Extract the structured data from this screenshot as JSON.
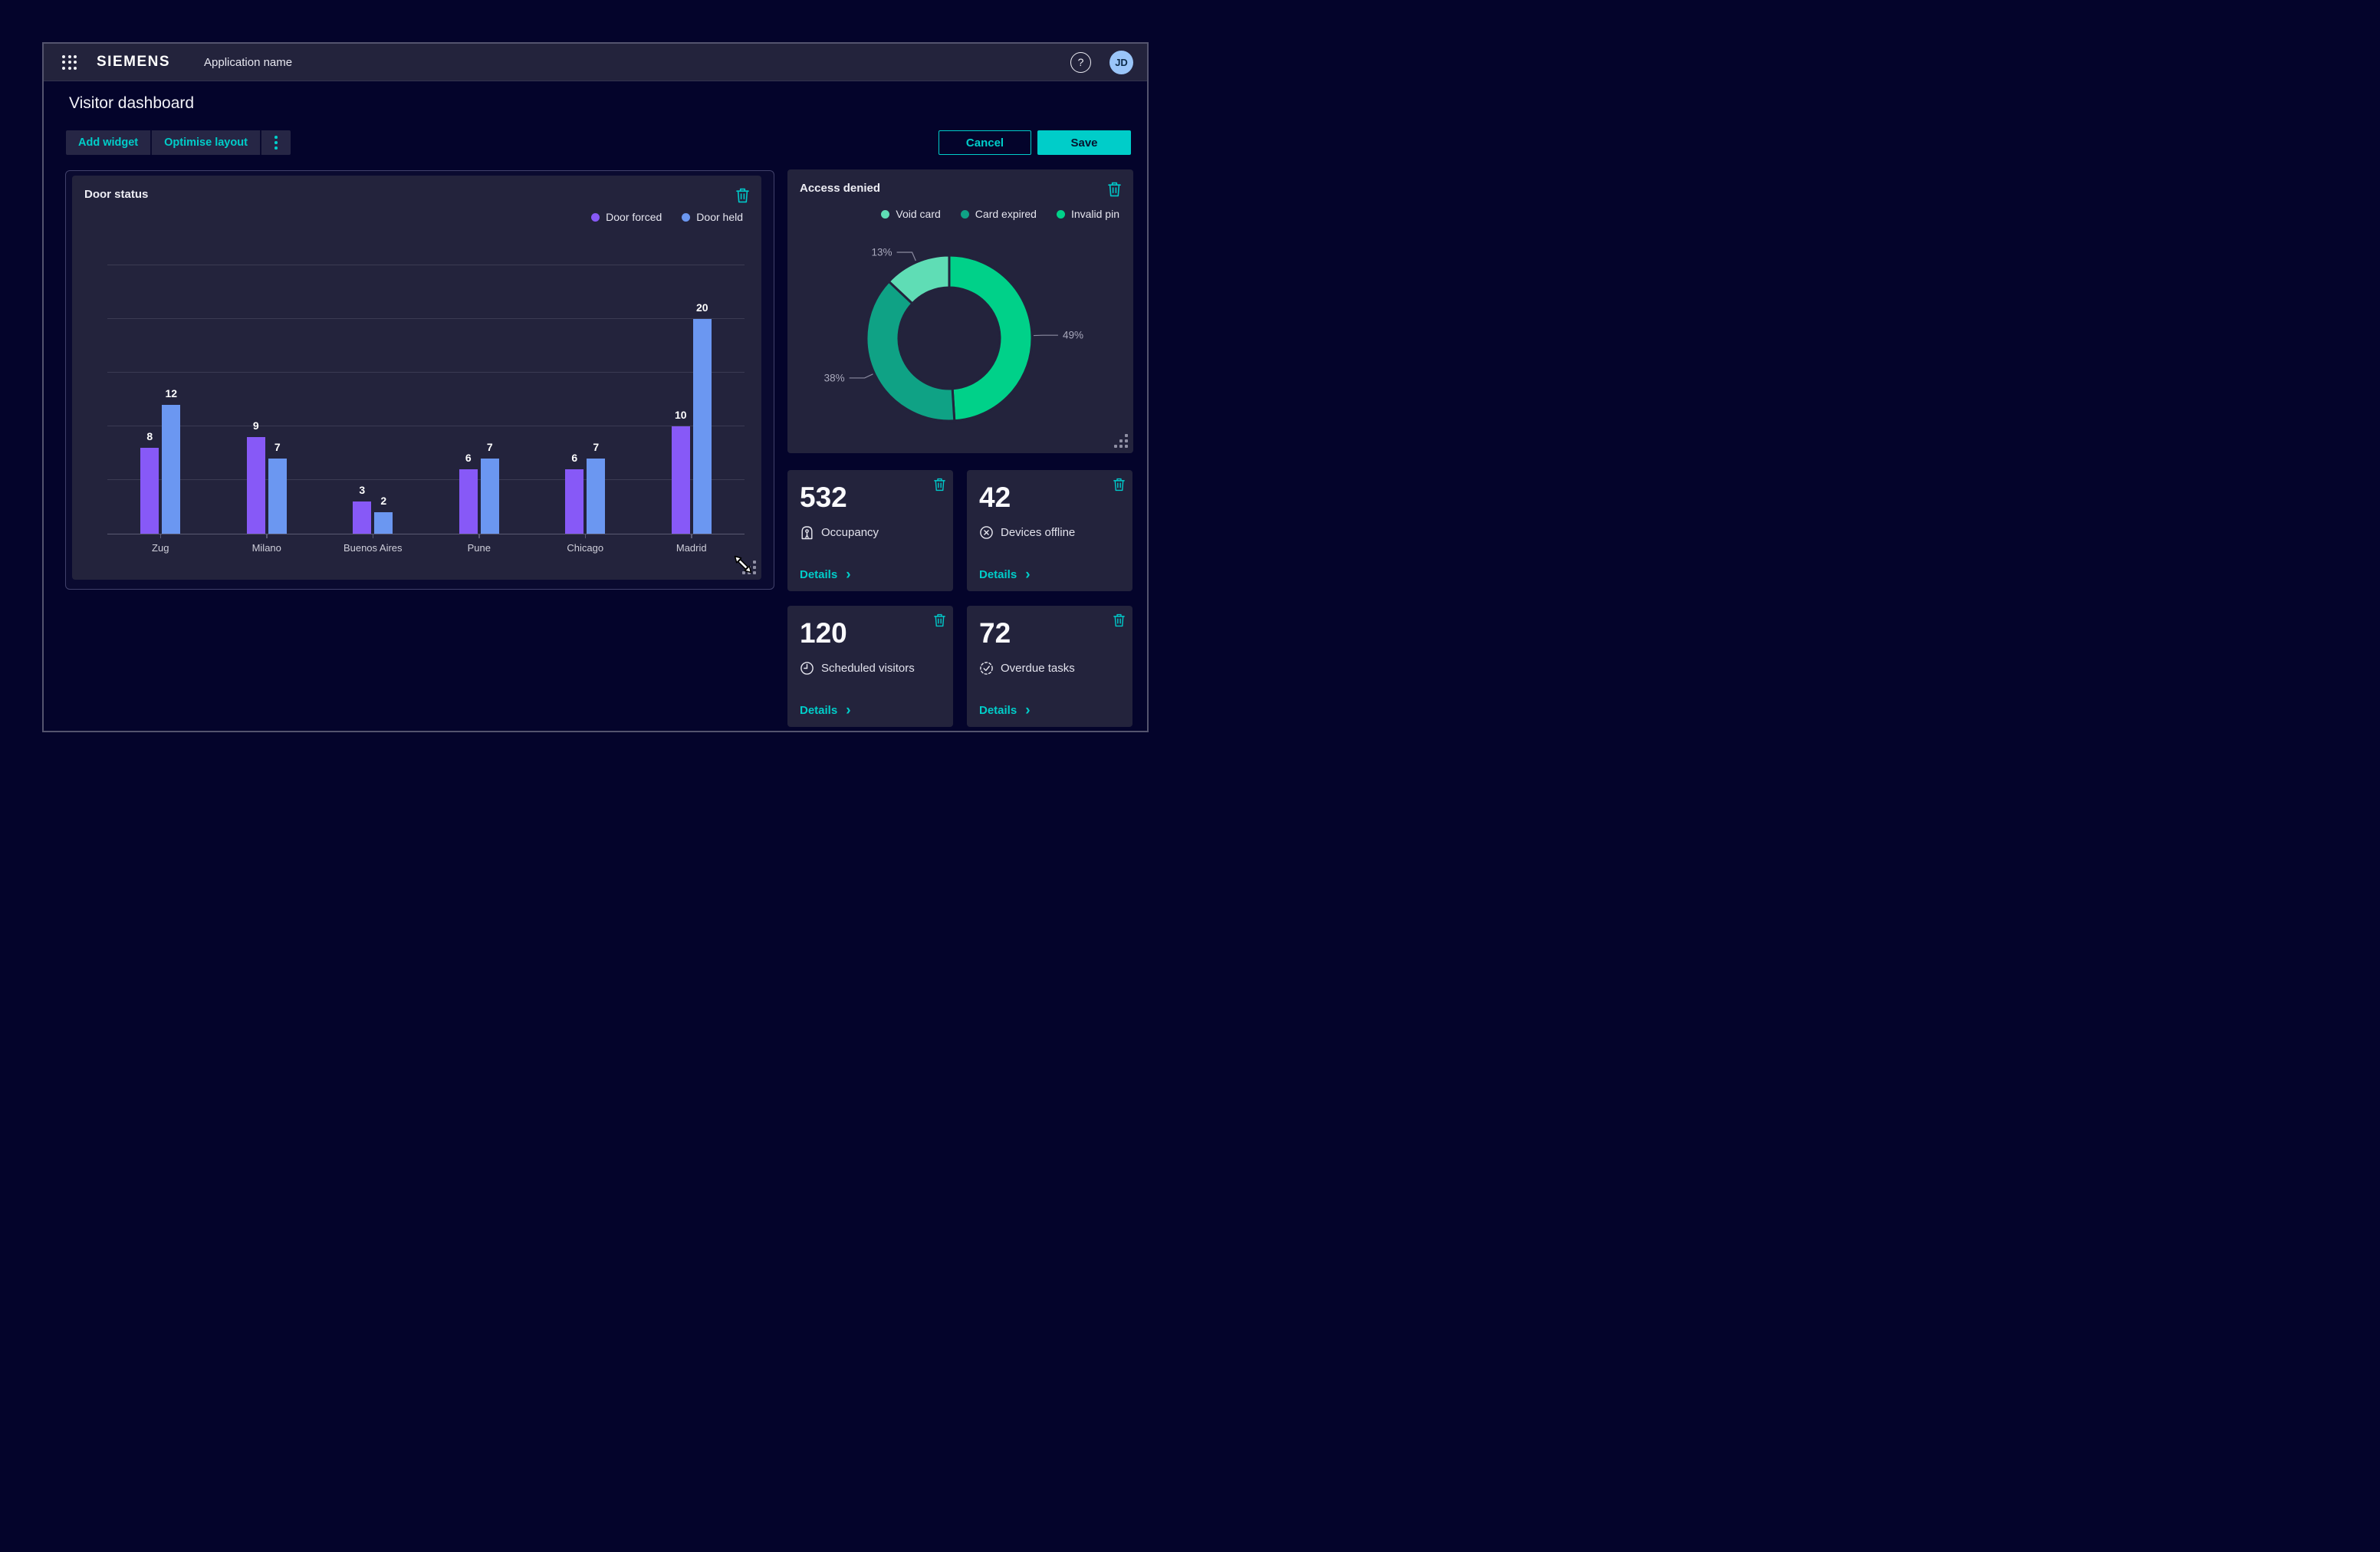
{
  "header": {
    "brand": "SIEMENS",
    "app_name": "Application name",
    "avatar_initials": "JD"
  },
  "page": {
    "title": "Visitor dashboard"
  },
  "toolbar": {
    "add_widget": "Add widget",
    "optimise_layout": "Optimise layout",
    "cancel": "Cancel",
    "save": "Save"
  },
  "icons": {
    "apps_grid": "3x3-dot-grid",
    "help_glyph": "?",
    "kebab": "vertical-ellipsis",
    "trash": "trash-outline",
    "chevron_right": "›",
    "resize_cursor": "diagonal-resize-arrow",
    "grip": "corner-dots"
  },
  "colors": {
    "accent": "#00CDC9",
    "card_bg": "#23233C",
    "page_bg": "#04042B",
    "bar_purple": "#8759F7",
    "bar_blue": "#6B97F1",
    "donut_bright_green": "#00D189",
    "donut_teal": "#0FA285",
    "donut_light_green": "#5FDDB5"
  },
  "chart_data": [
    {
      "type": "bar",
      "title": "Door status",
      "categories": [
        "Zug",
        "Milano",
        "Buenos Aires",
        "Pune",
        "Chicago",
        "Madrid"
      ],
      "series": [
        {
          "name": "Door forced",
          "color": "#8759F7",
          "values": [
            8,
            9,
            3,
            6,
            6,
            10
          ]
        },
        {
          "name": "Door held",
          "color": "#6B97F1",
          "values": [
            12,
            7,
            2,
            7,
            7,
            20
          ]
        }
      ],
      "xlabel": "",
      "ylabel": "",
      "ylim": [
        0,
        28
      ],
      "grid_step": 5,
      "grid": true,
      "legend_position": "top-right",
      "value_labels": true
    },
    {
      "type": "pie",
      "title": "Access denied",
      "legend": [
        {
          "label": "Void card",
          "color": "#5FDDB5"
        },
        {
          "label": "Card expired",
          "color": "#0FA285"
        },
        {
          "label": "Invalid pin",
          "color": "#00D189"
        }
      ],
      "slices_clockwise_from_top": [
        {
          "label": "Invalid pin",
          "pct": 49,
          "pct_label": "49%",
          "color": "#00D189"
        },
        {
          "label": "Card expired",
          "pct": 38,
          "pct_label": "38%",
          "color": "#0FA285"
        },
        {
          "label": "Void card",
          "pct": 13,
          "pct_label": "13%",
          "color": "#5FDDB5"
        }
      ],
      "donut": true,
      "legend_position": "top-right"
    }
  ],
  "kpi_cards": [
    {
      "value": "532",
      "label": "Occupancy",
      "icon": "occupancy-icon",
      "details_label": "Details"
    },
    {
      "value": "42",
      "label": "Devices offline",
      "icon": "devices-offline-icon",
      "details_label": "Details"
    },
    {
      "value": "120",
      "label": "Scheduled visitors",
      "icon": "scheduled-visitors-icon",
      "details_label": "Details"
    },
    {
      "value": "72",
      "label": "Overdue tasks",
      "icon": "overdue-tasks-icon",
      "details_label": "Details"
    }
  ]
}
